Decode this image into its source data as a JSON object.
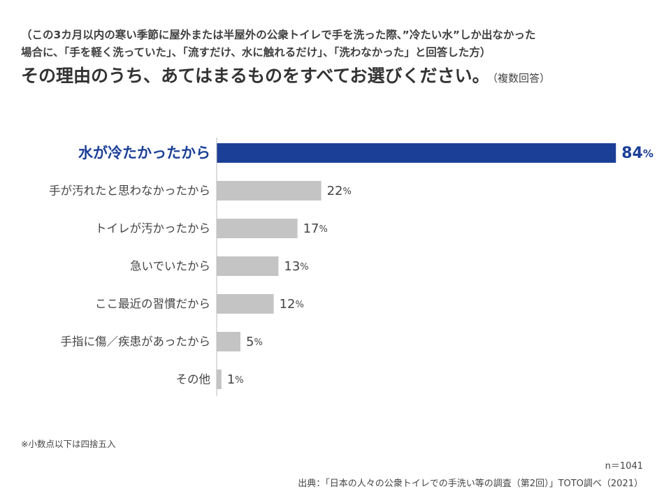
{
  "header": {
    "pre_line1": "（この3カ月以内の寒い季節に屋外または半屋外の公衆トイレで手を洗った際、”冷たい水”しか出なかった",
    "pre_line2": "場合に、「手を軽く洗っていた」、「流すだけ、水に触れるだけ」、「洗わなかった」と回答した方）",
    "question": "その理由のうち、あてはまるものをすべてお選びください。",
    "question_note": "（複数回答）"
  },
  "chart_data": {
    "type": "bar",
    "orientation": "horizontal",
    "categories": [
      "水が冷たかったから",
      "手が汚れたと思わなかったから",
      "トイレが汚かったから",
      "急いでいたから",
      "ここ最近の習慣だから",
      "手指に傷／疾患があったから",
      "その他"
    ],
    "values": [
      84,
      22,
      17,
      13,
      12,
      5,
      1
    ],
    "unit": "%",
    "highlight_index": 0,
    "colors": {
      "highlight": "#1b3f97",
      "bar": "#c4c4c4",
      "axis": "#bbbbbb"
    },
    "xlim": [
      0,
      100
    ],
    "grid": false
  },
  "footnote": "※小数点以下は四捨五入",
  "sample_size": "n＝1041",
  "source": "出典：「日本の人々の公衆トイレでの手洗い等の調査（第2回）」TOTO調べ（2021）"
}
